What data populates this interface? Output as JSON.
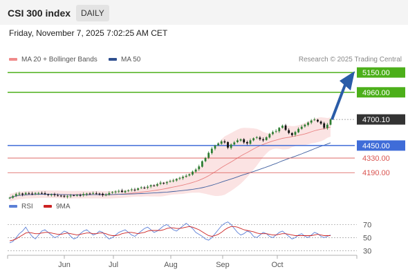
{
  "header": {
    "title": "CSI 300 index",
    "timeframe": "DAILY"
  },
  "datetime": "Friday, November 7, 2025 7:02:25 AM CET",
  "credit": "Research © 2025 Trading Central",
  "colors": {
    "up": "#2e7d32",
    "down": "#111111",
    "ma50": "#3f5f9f",
    "ma20": "#e88080",
    "band": "#fadada",
    "green": "#4caf1a",
    "blue": "#3f6cd8",
    "red": "#d9534f",
    "rsi": "#5b7fd6",
    "rsi_ma": "#cc2222",
    "arrow": "#2a5ca8"
  },
  "chart_data": [
    {
      "type": "candlestick",
      "title": "CSI 300 index",
      "legend": [
        "MA 20 + Bollinger Bands",
        "MA 50"
      ],
      "x_labels": [
        "Jun",
        "Jul",
        "Aug",
        "Sep",
        "Oct"
      ],
      "ylim": [
        3980,
        5210
      ],
      "close": [
        3950,
        3965,
        3985,
        3990,
        3980,
        3995,
        3990,
        3985,
        3995,
        3995,
        3990,
        3985,
        3975,
        3980,
        3975,
        3970,
        3965,
        3960,
        3965,
        3970,
        3972,
        3975,
        3970,
        3985,
        3990,
        3985,
        3995,
        3990,
        3985,
        3975,
        3980,
        3995,
        4005,
        4010,
        4015,
        4005,
        4015,
        4020,
        4030,
        4025,
        4040,
        4050,
        4045,
        4055,
        4070,
        4065,
        4080,
        4095,
        4090,
        4100,
        4110,
        4115,
        4130,
        4140,
        4150,
        4160,
        4175,
        4200,
        4220,
        4250,
        4300,
        4330,
        4380,
        4420,
        4450,
        4470,
        4490,
        4480,
        4430,
        4460,
        4480,
        4500,
        4510,
        4480,
        4470,
        4500,
        4520,
        4530,
        4510,
        4500,
        4530,
        4560,
        4580,
        4590,
        4620,
        4640,
        4600,
        4570,
        4550,
        4580,
        4610,
        4630,
        4650,
        4670,
        4690,
        4700,
        4680,
        4660,
        4620,
        4650,
        4700
      ],
      "levels": [
        {
          "label": "5150.00",
          "value": 5150,
          "kind": "resistance"
        },
        {
          "label": "4960.00",
          "value": 4960,
          "kind": "resistance"
        },
        {
          "label": "4700.10",
          "value": 4700.1,
          "kind": "last"
        },
        {
          "label": "4450.00",
          "value": 4450,
          "kind": "pivot"
        },
        {
          "label": "4330.00",
          "value": 4330,
          "kind": "support"
        },
        {
          "label": "4190.00",
          "value": 4190,
          "kind": "support"
        }
      ]
    },
    {
      "type": "line",
      "legend": [
        "RSI",
        "9MA"
      ],
      "ticks": [
        "70",
        "50",
        "30"
      ],
      "ylim": [
        25,
        80
      ],
      "rsi": [
        42,
        44,
        50,
        56,
        60,
        66,
        58,
        52,
        48,
        54,
        60,
        62,
        58,
        54,
        50,
        52,
        56,
        60,
        58,
        52,
        48,
        50,
        56,
        60,
        62,
        58,
        54,
        56,
        60,
        58,
        52,
        48,
        50,
        54,
        58,
        60,
        62,
        58,
        54,
        52,
        56,
        60,
        64,
        66,
        62,
        58,
        60,
        64,
        68,
        70,
        66,
        62,
        60,
        64,
        68,
        72,
        68,
        64,
        58,
        55,
        52,
        48,
        46,
        50,
        56,
        62,
        68,
        72,
        74,
        70,
        64,
        58,
        54,
        56,
        60,
        58,
        52,
        50,
        54,
        58,
        56,
        52,
        50,
        54,
        58,
        60,
        56,
        52,
        48,
        50,
        54,
        56,
        52,
        50,
        54,
        58,
        56,
        52,
        50,
        52,
        54
      ],
      "ma9": [
        45,
        46,
        48,
        51,
        54,
        57,
        58,
        57,
        56,
        56,
        57,
        58,
        58,
        57,
        56,
        55,
        55,
        56,
        57,
        56,
        55,
        54,
        55,
        56,
        57,
        57,
        56,
        56,
        57,
        57,
        56,
        54,
        53,
        53,
        54,
        56,
        57,
        58,
        58,
        57,
        56,
        57,
        58,
        60,
        61,
        61,
        61,
        61,
        62,
        64,
        65,
        65,
        64,
        64,
        65,
        66,
        67,
        66,
        64,
        62,
        59,
        56,
        53,
        52,
        53,
        55,
        58,
        62,
        65,
        67,
        67,
        66,
        64,
        62,
        61,
        60,
        59,
        57,
        56,
        56,
        56,
        55,
        54,
        54,
        55,
        56,
        56,
        55,
        54,
        53,
        53,
        53,
        53,
        53,
        53,
        54,
        55,
        54,
        53,
        53,
        53
      ]
    }
  ]
}
